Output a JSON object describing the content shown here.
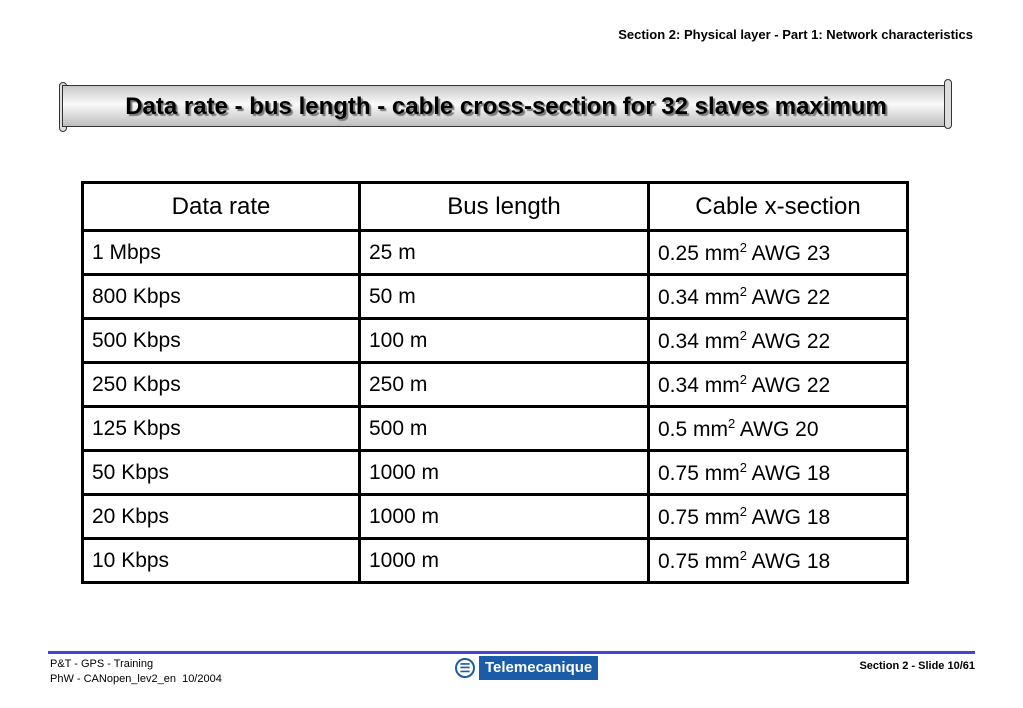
{
  "header": {
    "section": "Section 2: Physical layer - Part 1: Network characteristics"
  },
  "title": "Data rate - bus length - cable cross-section for 32 slaves maximum",
  "table": {
    "headers": [
      "Data rate",
      "Bus length",
      "Cable x-section"
    ],
    "rows": [
      [
        "1 Mbps",
        "25 m",
        "0.25 mm",
        "2",
        " AWG 23"
      ],
      [
        "800 Kbps",
        "50 m",
        "0.34 mm",
        "2",
        " AWG 22"
      ],
      [
        "500 Kbps",
        "100 m",
        "0.34 mm",
        "2",
        " AWG 22"
      ],
      [
        "250 Kbps",
        "250 m",
        "0.34 mm",
        "2",
        " AWG 22"
      ],
      [
        "125 Kbps",
        "500 m",
        "0.5 mm",
        "2",
        " AWG 20"
      ],
      [
        "50 Kbps",
        "1000 m",
        "0.75 mm",
        "2",
        " AWG 18"
      ],
      [
        "20 Kbps",
        "1000 m",
        "0.75 mm",
        "2",
        " AWG 18"
      ],
      [
        "10 Kbps",
        "1000 m",
        "0.75 mm",
        "2",
        " AWG 18"
      ]
    ]
  },
  "footer": {
    "line1": "P&T - GPS - Training",
    "line2": "PhW - CANopen_lev2_en  10/2004",
    "logo": "Telemecanique",
    "slide": "Section 2 - Slide 10/61",
    "accent": "#4444dd"
  }
}
